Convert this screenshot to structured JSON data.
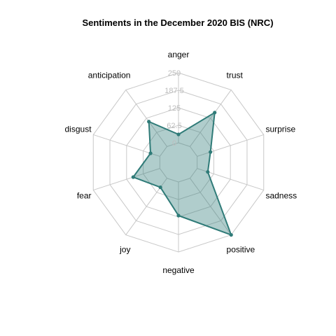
{
  "chart_data": {
    "type": "radar",
    "title": "Sentiments in the December 2020 BIS (NRC)",
    "categories": [
      "anger",
      "trust",
      "surprise",
      "sadness",
      "positive",
      "negative",
      "joy",
      "fear",
      "disgust",
      "anticipation"
    ],
    "values": [
      30,
      150,
      50,
      40,
      250,
      120,
      40,
      100,
      35,
      110
    ],
    "rlim": [
      0,
      250
    ],
    "tick_labels": [
      "0",
      "62.5",
      "125",
      "187.5",
      "250"
    ],
    "tick_values": [
      0,
      62.5,
      125,
      187.5,
      250
    ],
    "grid": true,
    "colors": {
      "line": "#2f7b78",
      "fill": "#2f7b78",
      "fill_opacity": 0.38,
      "grid": "#c8c8c8",
      "tick_text": "#bdbdbd"
    }
  }
}
